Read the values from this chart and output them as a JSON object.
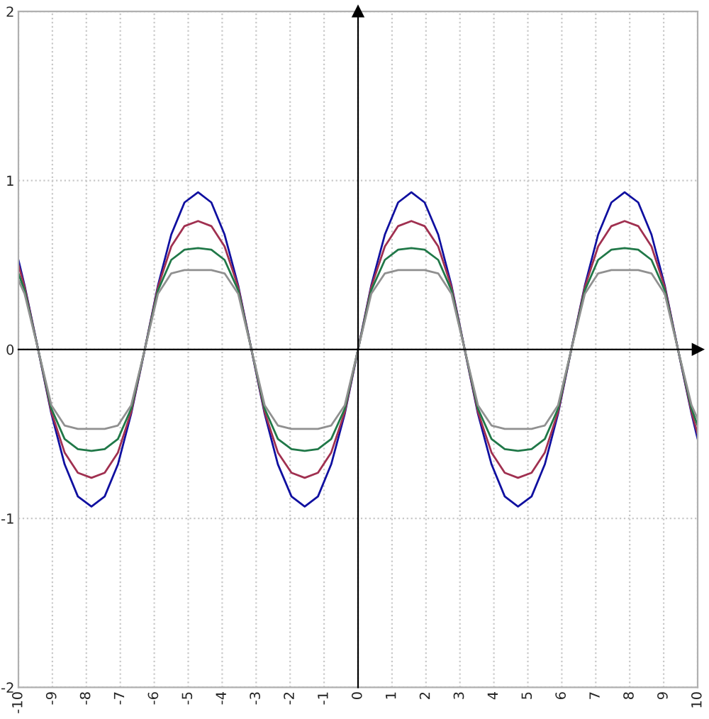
{
  "chart_data": {
    "type": "line",
    "x": [
      -10,
      -9.82,
      -9.42,
      -9.03,
      -8.64,
      -8.25,
      -7.85,
      -7.46,
      -7.07,
      -6.68,
      -6.28,
      -5.89,
      -5.5,
      -5.11,
      -4.71,
      -4.32,
      -3.93,
      -3.53,
      -3.14,
      -2.75,
      -2.36,
      -1.96,
      -1.57,
      -1.18,
      -0.79,
      -0.39,
      0,
      0.39,
      0.79,
      1.18,
      1.57,
      1.96,
      2.36,
      2.75,
      3.14,
      3.53,
      3.93,
      4.32,
      4.71,
      5.11,
      5.5,
      5.89,
      6.28,
      6.68,
      7.07,
      7.46,
      7.85,
      8.25,
      8.64,
      9.03,
      9.42,
      9.82,
      10
    ],
    "series": [
      {
        "color": "#1010a0",
        "values": [
          0.53,
          0.38,
          0,
          -0.38,
          -0.68,
          -0.87,
          -0.93,
          -0.87,
          -0.68,
          -0.38,
          0,
          0.38,
          0.68,
          0.87,
          0.93,
          0.87,
          0.68,
          0.38,
          0,
          -0.38,
          -0.68,
          -0.87,
          -0.93,
          -0.87,
          -0.68,
          -0.38,
          0,
          0.38,
          0.68,
          0.87,
          0.93,
          0.87,
          0.68,
          0.38,
          0,
          -0.38,
          -0.68,
          -0.87,
          -0.93,
          -0.87,
          -0.68,
          -0.38,
          0,
          0.38,
          0.68,
          0.87,
          0.93,
          0.87,
          0.68,
          0.38,
          0,
          -0.38,
          -0.53
        ]
      },
      {
        "color": "#a03050",
        "values": [
          0.5,
          0.37,
          0,
          -0.37,
          -0.61,
          -0.73,
          -0.76,
          -0.73,
          -0.61,
          -0.37,
          0,
          0.37,
          0.61,
          0.73,
          0.76,
          0.73,
          0.61,
          0.37,
          0,
          -0.37,
          -0.61,
          -0.73,
          -0.76,
          -0.73,
          -0.61,
          -0.37,
          0,
          0.37,
          0.61,
          0.73,
          0.76,
          0.73,
          0.61,
          0.37,
          0,
          -0.37,
          -0.61,
          -0.73,
          -0.76,
          -0.73,
          -0.61,
          -0.37,
          0,
          0.37,
          0.61,
          0.73,
          0.76,
          0.73,
          0.61,
          0.37,
          0,
          -0.37,
          -0.5
        ]
      },
      {
        "color": "#207848",
        "values": [
          0.45,
          0.35,
          0,
          -0.35,
          -0.53,
          -0.59,
          -0.6,
          -0.59,
          -0.53,
          -0.35,
          0,
          0.35,
          0.53,
          0.59,
          0.6,
          0.59,
          0.53,
          0.35,
          0,
          -0.35,
          -0.53,
          -0.59,
          -0.6,
          -0.59,
          -0.53,
          -0.35,
          0,
          0.35,
          0.53,
          0.59,
          0.6,
          0.59,
          0.53,
          0.35,
          0,
          -0.35,
          -0.53,
          -0.59,
          -0.6,
          -0.59,
          -0.53,
          -0.35,
          0,
          0.35,
          0.53,
          0.59,
          0.6,
          0.59,
          0.53,
          0.35,
          0,
          -0.35,
          -0.45
        ]
      },
      {
        "color": "#909090",
        "values": [
          0.41,
          0.33,
          0,
          -0.33,
          -0.45,
          -0.47,
          -0.47,
          -0.47,
          -0.45,
          -0.33,
          0,
          0.33,
          0.45,
          0.47,
          0.47,
          0.47,
          0.45,
          0.33,
          0,
          -0.33,
          -0.45,
          -0.47,
          -0.47,
          -0.47,
          -0.45,
          -0.33,
          0,
          0.33,
          0.45,
          0.47,
          0.47,
          0.47,
          0.45,
          0.33,
          0,
          -0.33,
          -0.45,
          -0.47,
          -0.47,
          -0.47,
          -0.45,
          -0.33,
          0,
          0.33,
          0.45,
          0.47,
          0.47,
          0.47,
          0.45,
          0.33,
          0,
          -0.33,
          -0.41
        ]
      }
    ],
    "xlim": [
      -10,
      10
    ],
    "ylim": [
      -2,
      2
    ],
    "xticks": [
      -10,
      -9,
      -8,
      -7,
      -6,
      -5,
      -4,
      -3,
      -2,
      -1,
      0,
      1,
      2,
      3,
      4,
      5,
      6,
      7,
      8,
      9,
      10
    ],
    "yticks": [
      -2,
      -1,
      0,
      1,
      2
    ],
    "grid": true,
    "line_style": "solid"
  }
}
